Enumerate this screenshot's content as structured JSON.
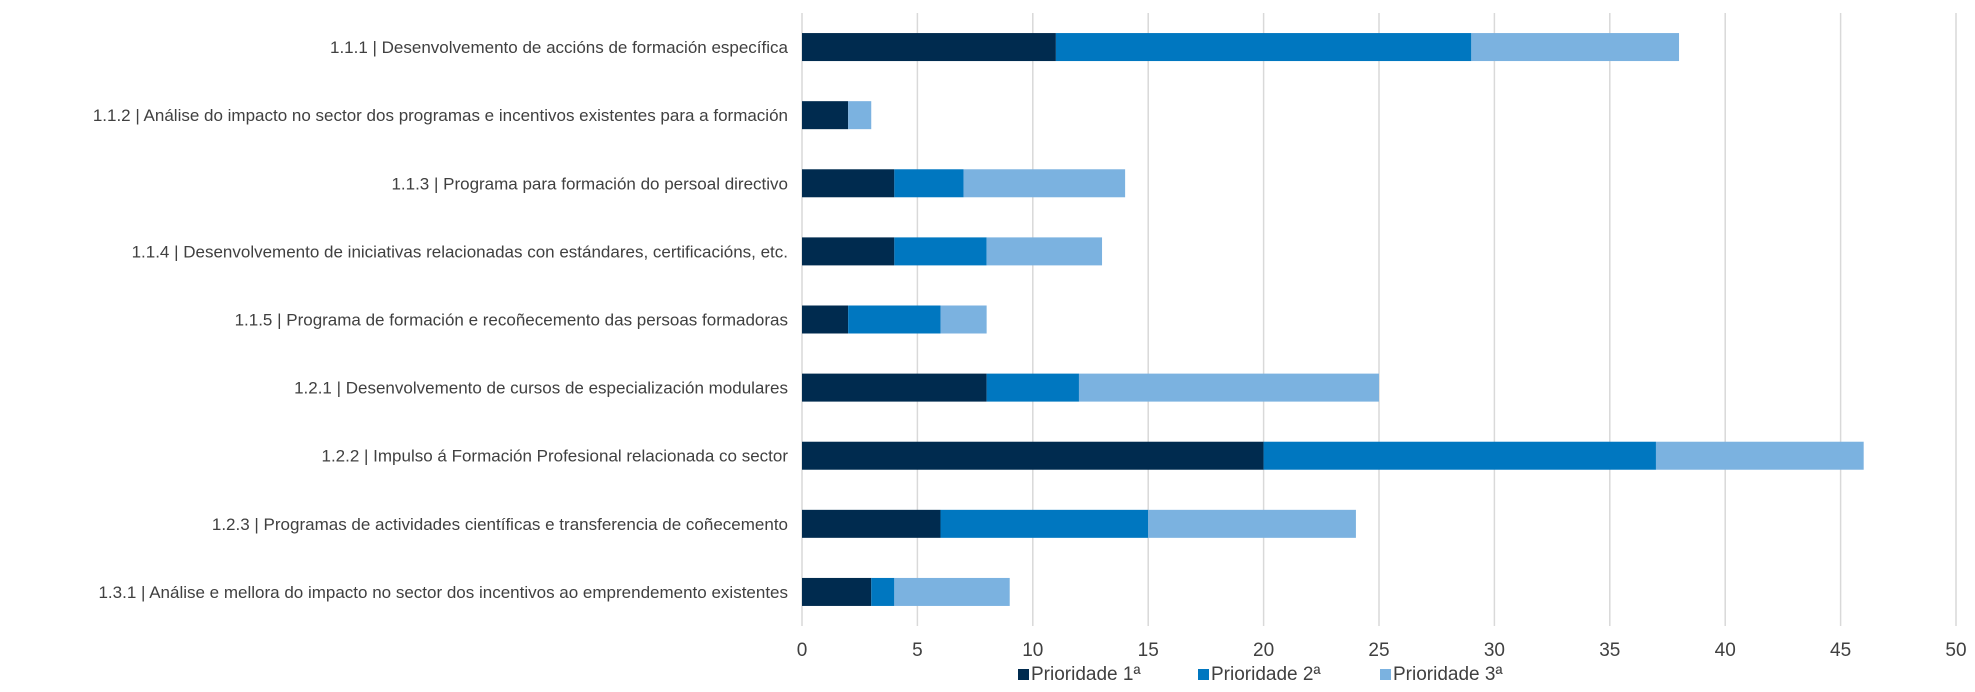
{
  "chart_data": {
    "type": "bar",
    "orientation": "horizontal",
    "stacked": true,
    "categories": [
      "1.1.1 | Desenvolvemento de accións de formación específica",
      "1.1.2 | Análise do impacto no sector dos programas e incentivos existentes para a formación",
      "1.1.3 | Programa para formación do persoal directivo",
      "1.1.4 | Desenvolvemento de iniciativas relacionadas con estándares, certificacións, etc.",
      "1.1.5 | Programa de formación e recoñecemento das persoas formadoras",
      "1.2.1 | Desenvolvemento de cursos de especialización modulares",
      "1.2.2 | Impulso á Formación Profesional relacionada co sector",
      "1.2.3 | Programas de actividades científicas e transferencia de coñecemento",
      "1.3.1 | Análise e mellora do impacto no sector dos incentivos ao emprendemento existentes"
    ],
    "series": [
      {
        "name": "Prioridade 1ª",
        "color": "#002b4f",
        "values": [
          11,
          2,
          4,
          4,
          2,
          8,
          20,
          6,
          3
        ]
      },
      {
        "name": "Prioridade 2ª",
        "color": "#0077c0",
        "values": [
          18,
          0,
          3,
          4,
          4,
          4,
          17,
          9,
          1
        ]
      },
      {
        "name": "Prioridade 3ª",
        "color": "#7bb2e0",
        "values": [
          9,
          1,
          7,
          5,
          2,
          13,
          9,
          9,
          5
        ]
      }
    ],
    "xlim": [
      0,
      50
    ],
    "xticks": [
      0,
      5,
      10,
      15,
      20,
      25,
      30,
      35,
      40,
      45,
      50
    ],
    "grid": true,
    "legend": "bottom"
  }
}
